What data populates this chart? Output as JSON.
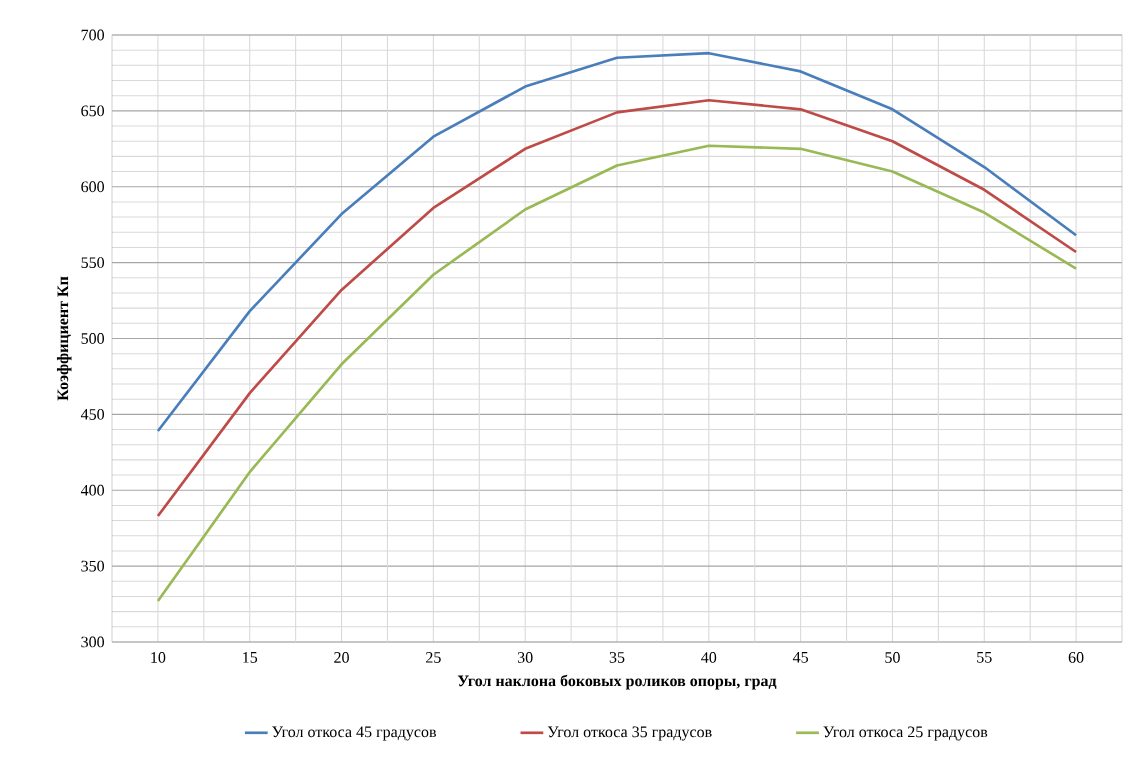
{
  "chart_data": {
    "type": "line",
    "xlabel": "Угол наклона боковых роликов опоры, град",
    "ylabel": "Коэффициент Кп",
    "x": [
      10,
      15,
      20,
      25,
      30,
      35,
      40,
      45,
      50,
      55,
      60
    ],
    "series": [
      {
        "name": "Угол откоса 45 градусов",
        "color": "#4a7ebb",
        "values": [
          439,
          518,
          582,
          633,
          666,
          685,
          688,
          676,
          651,
          613,
          568
        ]
      },
      {
        "name": "Угол откоса 35 градусов",
        "color": "#be4b48",
        "values": [
          383,
          464,
          532,
          586,
          625,
          649,
          657,
          651,
          630,
          598,
          557
        ]
      },
      {
        "name": "Угол откоса 25 градусов",
        "color": "#98b954",
        "values": [
          327,
          412,
          483,
          542,
          585,
          614,
          627,
          625,
          610,
          583,
          546
        ]
      }
    ],
    "xlim": [
      7.5,
      62.5
    ],
    "xticks": [
      10,
      {
        "value": 12.5,
        "label": null
      },
      15,
      {
        "value": 17.5,
        "label": null
      },
      20,
      {
        "value": 22.5,
        "label": null
      },
      25,
      {
        "value": 27.5,
        "label": null
      },
      30,
      {
        "value": 32.5,
        "label": null
      },
      35,
      {
        "value": 37.5,
        "label": null
      },
      40,
      {
        "value": 42.5,
        "label": null
      },
      45,
      {
        "value": 47.5,
        "label": null
      },
      50,
      {
        "value": 52.5,
        "label": null
      },
      55,
      {
        "value": 57.5,
        "label": null
      },
      60
    ],
    "ylim": [
      300,
      700
    ],
    "yticks": [
      300,
      350,
      400,
      450,
      500,
      550,
      600,
      650,
      700
    ],
    "grid": true,
    "legend": "bottom",
    "marker": "none",
    "line_style": "solid"
  }
}
